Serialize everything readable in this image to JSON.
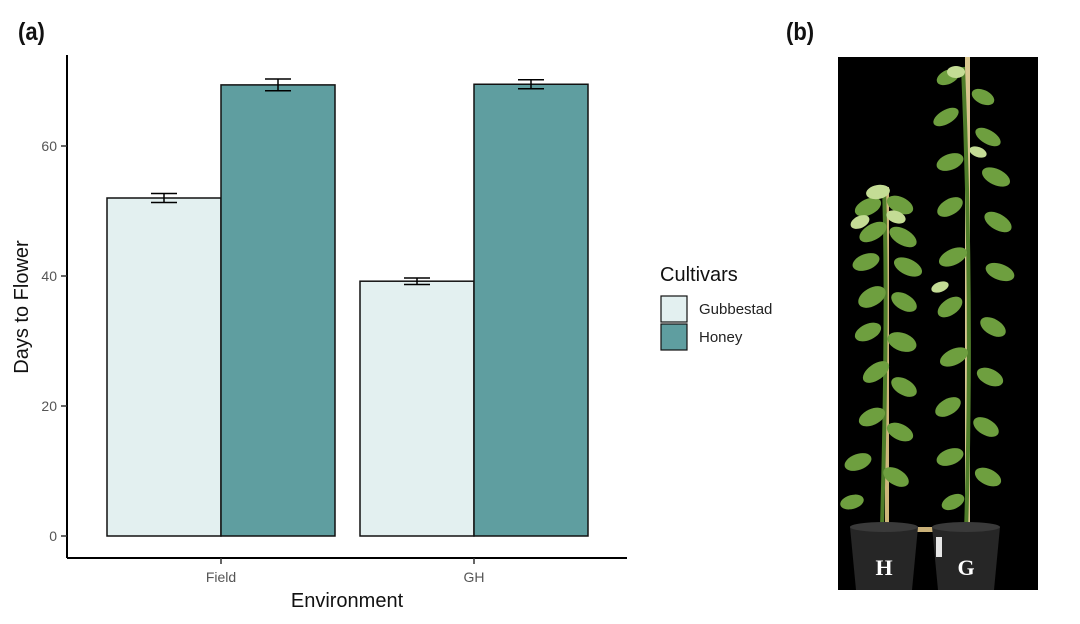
{
  "figure": {
    "panel_a_label": "(a)",
    "panel_b_label": "(b)"
  },
  "chart_data": {
    "type": "bar",
    "title": "",
    "xlabel": "Environment",
    "ylabel": "Days to Flower",
    "categories": [
      "Field",
      "GH"
    ],
    "series": [
      {
        "name": "Gubbestad",
        "color": "#e3f0f0",
        "values": [
          52.0,
          39.2
        ],
        "errors": [
          0.7,
          0.5
        ]
      },
      {
        "name": "Honey",
        "color": "#5f9ea0",
        "values": [
          69.4,
          69.5
        ],
        "errors": [
          0.9,
          0.7
        ]
      }
    ],
    "ylim": [
      0,
      74
    ],
    "yticks": [
      0,
      20,
      40,
      60
    ],
    "legend": {
      "title": "Cultivars",
      "position": "right"
    },
    "grid": false
  },
  "photo": {
    "pot_labels": [
      "H",
      "G"
    ],
    "colors": {
      "background": "#000000",
      "leaf": "#6e9f3f",
      "leaf_light": "#b9d38a",
      "stake": "#d9c58e",
      "pot": "#262626"
    }
  }
}
